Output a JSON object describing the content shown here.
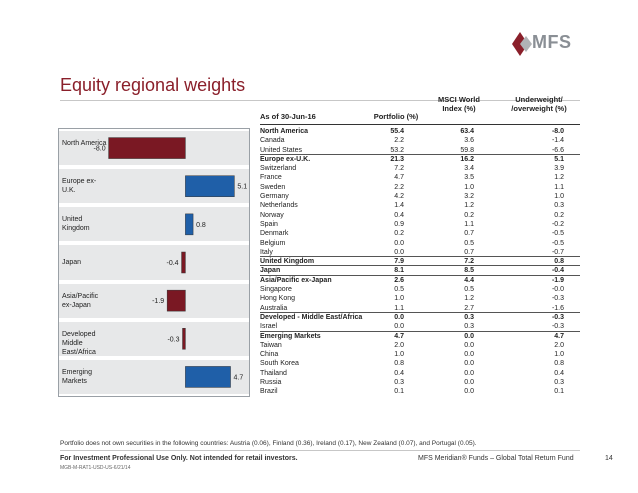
{
  "brand": {
    "logo_text": "MFS",
    "accent": "#8a1f2a",
    "bar_color": "#7a1823",
    "bar_color_pos": "#1f5fa8"
  },
  "title": "Equity regional weights",
  "table": {
    "headers": {
      "as_of": "As of 30-Jun-16",
      "portfolio": "Portfolio (%)",
      "msci": "MSCI World Index (%)",
      "diff": "Underweight/ /overweight (%)"
    },
    "rows": [
      {
        "name": "North America",
        "p": "55.4",
        "i": "63.4",
        "d": "-8.0",
        "bold": true,
        "ruled": false
      },
      {
        "name": "Canada",
        "p": "2.2",
        "i": "3.6",
        "d": "-1.4"
      },
      {
        "name": "United States",
        "p": "53.2",
        "i": "59.8",
        "d": "-6.6",
        "ruled": true
      },
      {
        "name": "Europe ex-U.K.",
        "p": "21.3",
        "i": "16.2",
        "d": "5.1",
        "bold": true
      },
      {
        "name": "Switzerland",
        "p": "7.2",
        "i": "3.4",
        "d": "3.9"
      },
      {
        "name": "France",
        "p": "4.7",
        "i": "3.5",
        "d": "1.2"
      },
      {
        "name": "Sweden",
        "p": "2.2",
        "i": "1.0",
        "d": "1.1"
      },
      {
        "name": "Germany",
        "p": "4.2",
        "i": "3.2",
        "d": "1.0"
      },
      {
        "name": "Netherlands",
        "p": "1.4",
        "i": "1.2",
        "d": "0.3"
      },
      {
        "name": "Norway",
        "p": "0.4",
        "i": "0.2",
        "d": "0.2"
      },
      {
        "name": "Spain",
        "p": "0.9",
        "i": "1.1",
        "d": "-0.2"
      },
      {
        "name": "Denmark",
        "p": "0.2",
        "i": "0.7",
        "d": "-0.5"
      },
      {
        "name": "Belgium",
        "p": "0.0",
        "i": "0.5",
        "d": "-0.5"
      },
      {
        "name": "Italy",
        "p": "0.0",
        "i": "0.7",
        "d": "-0.7",
        "ruled": true
      },
      {
        "name": "United Kingdom",
        "p": "7.9",
        "i": "7.2",
        "d": "0.8",
        "bold": true,
        "ruled": true
      },
      {
        "name": "Japan",
        "p": "8.1",
        "i": "8.5",
        "d": "-0.4",
        "bold": true,
        "ruled": true
      },
      {
        "name": "Asia/Pacific ex-Japan",
        "p": "2.6",
        "i": "4.4",
        "d": "-1.9",
        "bold": true
      },
      {
        "name": "Singapore",
        "p": "0.5",
        "i": "0.5",
        "d": "-0.0"
      },
      {
        "name": "Hong Kong",
        "p": "1.0",
        "i": "1.2",
        "d": "-0.3"
      },
      {
        "name": "Australia",
        "p": "1.1",
        "i": "2.7",
        "d": "-1.6",
        "ruled": true
      },
      {
        "name": "Developed - Middle East/Africa",
        "p": "0.0",
        "i": "0.3",
        "d": "-0.3",
        "bold": true
      },
      {
        "name": "Israel",
        "p": "0.0",
        "i": "0.3",
        "d": "-0.3",
        "ruled": true
      },
      {
        "name": "Emerging Markets",
        "p": "4.7",
        "i": "0.0",
        "d": "4.7",
        "bold": true
      },
      {
        "name": "Taiwan",
        "p": "2.0",
        "i": "0.0",
        "d": "2.0"
      },
      {
        "name": "China",
        "p": "1.0",
        "i": "0.0",
        "d": "1.0"
      },
      {
        "name": "South Korea",
        "p": "0.8",
        "i": "0.0",
        "d": "0.8"
      },
      {
        "name": "Thailand",
        "p": "0.4",
        "i": "0.0",
        "d": "0.4"
      },
      {
        "name": "Russia",
        "p": "0.3",
        "i": "0.0",
        "d": "0.3"
      },
      {
        "name": "Brazil",
        "p": "0.1",
        "i": "0.0",
        "d": "0.1"
      }
    ]
  },
  "chart_data": {
    "type": "bar",
    "orientation": "horizontal",
    "categories": [
      "North America",
      "Europe ex-U.K.",
      "United Kingdom",
      "Japan",
      "Asia/Pacific ex-Japan",
      "Developed Middle East/Africa",
      "Emerging Markets"
    ],
    "category_labels": [
      "North America",
      "Europe ex-U.K.",
      "United Kingdom",
      "Japan",
      "Asia/Pacific ex-Japan",
      "Developed Middle East/Africa",
      "Emerging Markets"
    ],
    "values": [
      -8.0,
      5.1,
      0.8,
      -0.4,
      -1.9,
      -0.3,
      4.7
    ],
    "value_labels": [
      "-8.0",
      "5.1",
      "0.8",
      "-0.4",
      "-1.9",
      "-0.3",
      "4.7"
    ],
    "xlim": [
      -9,
      6
    ]
  },
  "footer": {
    "footnote": "Portfolio does not own securities in the following countries: Austria (0.06), Finland (0.36), Ireland (0.17), New Zealand (0.07), and Portugal (0.05).",
    "disclaimer": "For Investment Professional Use Only. Not intended for retail investors.",
    "code": "MGB-M-RAT1-USD-US-6/21/14",
    "fund": "MFS Meridian® Funds – Global Total Return Fund",
    "page_number": "14"
  }
}
